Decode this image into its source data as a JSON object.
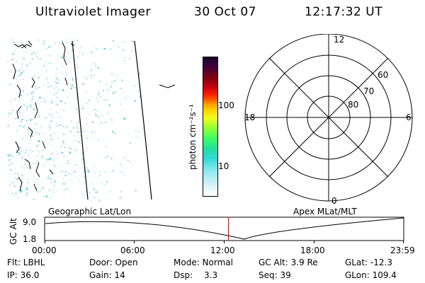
{
  "header": {
    "instrument": "Ultraviolet Imager",
    "date": "30 Oct 07",
    "time": "12:17:32 UT"
  },
  "geo_panel": {
    "label": "Geographic Lat/Lon",
    "speckle_color": "#b8e4ea"
  },
  "colorbar": {
    "unit_label": "photon cm⁻²s⁻¹",
    "ticks": [
      "100",
      "10"
    ]
  },
  "polar_plot": {
    "label": "Apex MLat/MLT",
    "mlt_labels": {
      "top": "12",
      "bottom": "0",
      "left": "18",
      "right": "6"
    },
    "lat_labels": [
      "60",
      "70",
      "80"
    ]
  },
  "timeline": {
    "ylabel": "GC Alt",
    "y_ticks": [
      "9.0",
      "1.8"
    ],
    "x_ticks": [
      "00:00",
      "06:00",
      "12:00",
      "18:00",
      "23:59"
    ],
    "current_time_hours": 12.29,
    "marker_color": "#cc0000"
  },
  "footer": {
    "filter": "Flt: LBHL",
    "ip": "IP: 36.0",
    "door": "Door: Open",
    "gain": "Gain: 14",
    "mode": "Mode: Normal",
    "dsp_label": "Dsp:",
    "dsp_value": "3.3",
    "gc_alt": "GC Alt: 3.9 Re",
    "seq": "Seq: 39",
    "glat": "GLat: -12.3",
    "glon": "GLon: 109.4"
  }
}
